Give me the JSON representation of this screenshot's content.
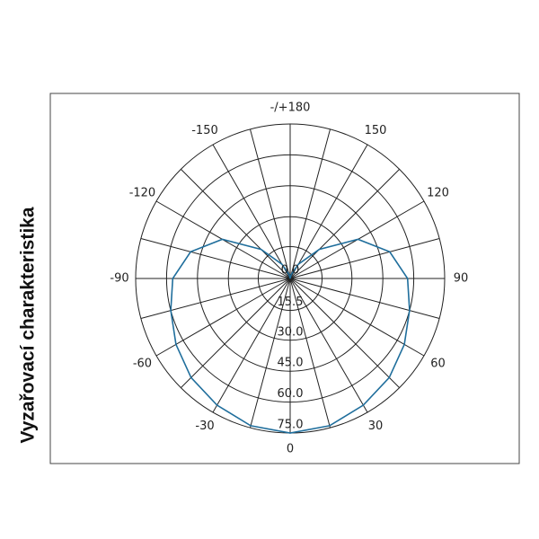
{
  "chart_data": {
    "type": "polar",
    "title": "Vyzařovací charakteristika",
    "x": [
      -180,
      -165,
      -150,
      -135,
      -120,
      -105,
      -90,
      -75,
      -60,
      -45,
      -30,
      -15,
      0,
      15,
      30,
      45,
      60,
      75,
      90,
      105,
      120,
      135,
      150,
      165,
      180
    ],
    "series": [
      {
        "color": "#1f6e9c",
        "values": [
          0,
          2,
          8,
          20,
          38,
          50,
          57,
          60,
          64,
          68,
          71,
          74,
          75,
          74,
          71,
          68,
          64,
          60,
          57,
          50,
          38,
          20,
          8,
          2,
          0
        ]
      }
    ],
    "rlim": [
      0,
      75
    ],
    "rticks": [
      {
        "value": 0,
        "label": "0.0"
      },
      {
        "value": 15.5,
        "label": "15.5"
      },
      {
        "value": 30,
        "label": "30.0"
      },
      {
        "value": 45,
        "label": "45.0"
      },
      {
        "value": 60,
        "label": "60.0"
      },
      {
        "value": 75,
        "label": "75.0"
      }
    ],
    "thetaticks": [
      0,
      30,
      60,
      90,
      120,
      150,
      {
        "value": 180,
        "label": "-/+180"
      },
      -150,
      -120,
      -90,
      -60,
      -30
    ],
    "theta_minor_ticks": [
      15,
      45,
      75,
      105,
      135,
      165,
      -165,
      -135,
      -105,
      -75,
      -45,
      -15
    ]
  }
}
